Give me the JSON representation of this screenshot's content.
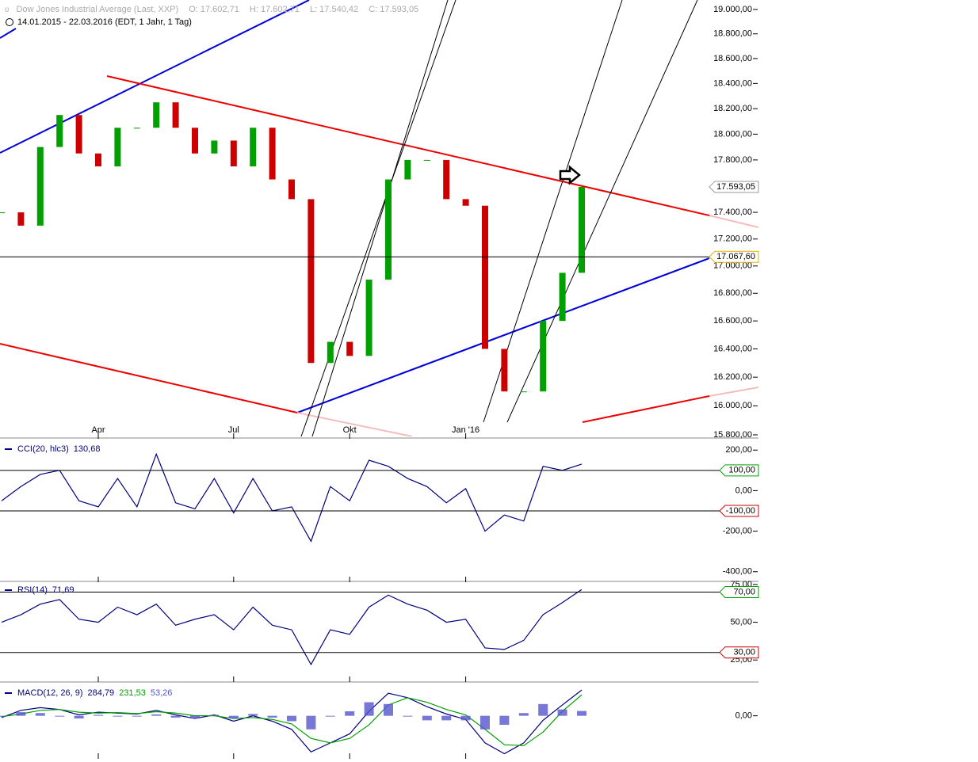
{
  "chart_data": [
    {
      "type": "price",
      "title": "Dow Jones Industrial Average (Last, XXP)",
      "stats": [
        "O: 17.602,71",
        "H: 17.602,71",
        "L: 17.540,42",
        "C: 17.593,05"
      ],
      "subtitle": "14.01.2015 - 22.03.2016 (EDT, 1 Jahr, 1 Tag)",
      "categories": [
        null,
        null,
        null,
        null,
        null,
        "Apr",
        null,
        null,
        null,
        null,
        null,
        null,
        "Jul",
        null,
        null,
        null,
        null,
        null,
        "Okt",
        null,
        null,
        null,
        null,
        null,
        "Jan '16",
        null,
        null,
        null,
        null,
        null,
        null
      ],
      "values": [
        17400,
        17300,
        17900,
        18150,
        17850,
        17750,
        18050,
        18050,
        18250,
        18050,
        17850,
        17950,
        17750,
        18050,
        17650,
        17500,
        16300,
        16450,
        16350,
        16900,
        17650,
        17800,
        17800,
        17500,
        17450,
        16400,
        16100,
        16100,
        16600,
        16950,
        17593.05
      ],
      "up_color": "#00a000",
      "down_color": "#cc0000",
      "log": true,
      "ylim": [
        15789,
        19078
      ],
      "yticks": [
        {
          "value": 15800,
          "label": "15.800,00"
        },
        {
          "value": 16000,
          "label": "16.000,00"
        },
        {
          "value": 16200,
          "label": "16.200,00"
        },
        {
          "value": 16400,
          "label": "16.400,00"
        },
        {
          "value": 16600,
          "label": "16.600,00"
        },
        {
          "value": 16800,
          "label": "16.800,00"
        },
        {
          "value": 17000,
          "label": "17.000,00"
        },
        {
          "value": 17200,
          "label": "17.200,00"
        },
        {
          "value": 17400,
          "label": "17.400,00"
        },
        {
          "value": 17800,
          "label": "17.800,00"
        },
        {
          "value": 18000,
          "label": "18.000,00"
        },
        {
          "value": 18200,
          "label": "18.200,00"
        },
        {
          "value": 18400,
          "label": "18.400,00"
        },
        {
          "value": 18600,
          "label": "18.600,00"
        },
        {
          "value": 18800,
          "label": "18.800,00"
        },
        {
          "value": 19000,
          "label": "19.000,00"
        }
      ],
      "markers": [
        {
          "value": 17593.05,
          "label": "17.593,05",
          "color": "#999999"
        },
        {
          "value": 17067.6,
          "label": "17.067,60",
          "color": "#e0b000"
        }
      ]
    },
    {
      "type": "line",
      "ylim": [
        -440,
        240
      ],
      "yticks": [
        {
          "value": 200,
          "label": "200,00"
        },
        {
          "value": 0,
          "label": "0,00"
        },
        {
          "value": -200,
          "label": "-200,00"
        },
        {
          "value": -400,
          "label": "-400,00"
        }
      ],
      "levels": [
        {
          "value": 100,
          "label": "100,00",
          "color": "#00a000"
        },
        {
          "value": -100,
          "label": "-100,00",
          "color": "#cc0000"
        }
      ],
      "series": [
        {
          "name": "CCI(20, hlc3)",
          "color": "#000080",
          "values": [
            -50,
            20,
            80,
            100,
            -50,
            -80,
            60,
            -80,
            180,
            -60,
            -90,
            60,
            -110,
            60,
            -100,
            -80,
            -250,
            20,
            -50,
            150,
            120,
            60,
            20,
            -60,
            10,
            -200,
            -120,
            -150,
            120,
            100,
            130.68
          ],
          "value_labels": [
            null,
            null,
            null,
            null,
            null,
            null,
            null,
            null,
            null,
            null,
            null,
            null,
            null,
            null,
            null,
            null,
            null,
            null,
            null,
            null,
            null,
            null,
            null,
            null,
            null,
            null,
            null,
            null,
            null,
            null,
            "130,68"
          ]
        }
      ]
    },
    {
      "type": "line",
      "ylim": [
        12,
        76
      ],
      "yticks": [
        {
          "value": 75,
          "label": "75,00"
        },
        {
          "value": 50,
          "label": "50,00"
        },
        {
          "value": 25,
          "label": "25,00"
        }
      ],
      "levels": [
        {
          "value": 70,
          "label": "70,00",
          "color": "#00a000"
        },
        {
          "value": 30,
          "label": "30,00",
          "color": "#cc0000"
        }
      ],
      "series": [
        {
          "name": "RSI(14)",
          "color": "#000080",
          "values": [
            50,
            55,
            62,
            65,
            52,
            50,
            60,
            55,
            62,
            48,
            52,
            55,
            45,
            60,
            48,
            45,
            22,
            45,
            42,
            60,
            68,
            62,
            58,
            50,
            52,
            33,
            32,
            38,
            55,
            63,
            71.69
          ],
          "value_labels": [
            null,
            null,
            null,
            null,
            null,
            null,
            null,
            null,
            null,
            null,
            null,
            null,
            null,
            null,
            null,
            null,
            null,
            null,
            null,
            null,
            null,
            null,
            null,
            null,
            null,
            null,
            null,
            null,
            null,
            null,
            "71,69"
          ]
        }
      ]
    },
    {
      "type": "line",
      "ylim": [
        -450,
        330
      ],
      "yticks": [
        {
          "value": 0,
          "label": "0,00"
        }
      ],
      "series": [
        {
          "name": "MACD(12, 26, 9)",
          "color": "#000080",
          "values": [
            -20,
            60,
            90,
            70,
            10,
            40,
            30,
            20,
            60,
            10,
            -30,
            10,
            -60,
            0,
            -60,
            -150,
            -400,
            -300,
            -200,
            50,
            250,
            200,
            100,
            20,
            -40,
            -300,
            -420,
            -300,
            -50,
            120,
            284.79
          ],
          "value_labels": [
            null,
            null,
            null,
            null,
            null,
            null,
            null,
            null,
            null,
            null,
            null,
            null,
            null,
            null,
            null,
            null,
            null,
            null,
            null,
            null,
            null,
            null,
            null,
            null,
            null,
            null,
            null,
            null,
            null,
            null,
            "284,79"
          ]
        },
        {
          "color": "#00a000",
          "values": [
            -10,
            20,
            60,
            70,
            40,
            30,
            35,
            25,
            45,
            30,
            0,
            0,
            -30,
            -20,
            -40,
            -90,
            -250,
            -300,
            -250,
            -100,
            120,
            200,
            150,
            70,
            10,
            -150,
            -320,
            -330,
            -180,
            50,
            231.53
          ],
          "value_labels": [
            null,
            null,
            null,
            null,
            null,
            null,
            null,
            null,
            null,
            null,
            null,
            null,
            null,
            null,
            null,
            null,
            null,
            null,
            null,
            null,
            null,
            null,
            null,
            null,
            null,
            null,
            null,
            null,
            null,
            null,
            "231,53"
          ]
        },
        {
          "color": "#5555cc",
          "style": "bar",
          "values": [
            -10,
            40,
            30,
            0,
            -30,
            10,
            -5,
            -5,
            15,
            -20,
            -30,
            10,
            -30,
            20,
            -20,
            -60,
            -150,
            0,
            50,
            150,
            130,
            0,
            -50,
            -50,
            -50,
            -150,
            -100,
            30,
            130,
            70,
            53.26
          ],
          "value_labels": [
            null,
            null,
            null,
            null,
            null,
            null,
            null,
            null,
            null,
            null,
            null,
            null,
            null,
            null,
            null,
            null,
            null,
            null,
            null,
            null,
            null,
            null,
            null,
            null,
            null,
            null,
            null,
            null,
            null,
            null,
            "53,26"
          ]
        }
      ]
    }
  ]
}
